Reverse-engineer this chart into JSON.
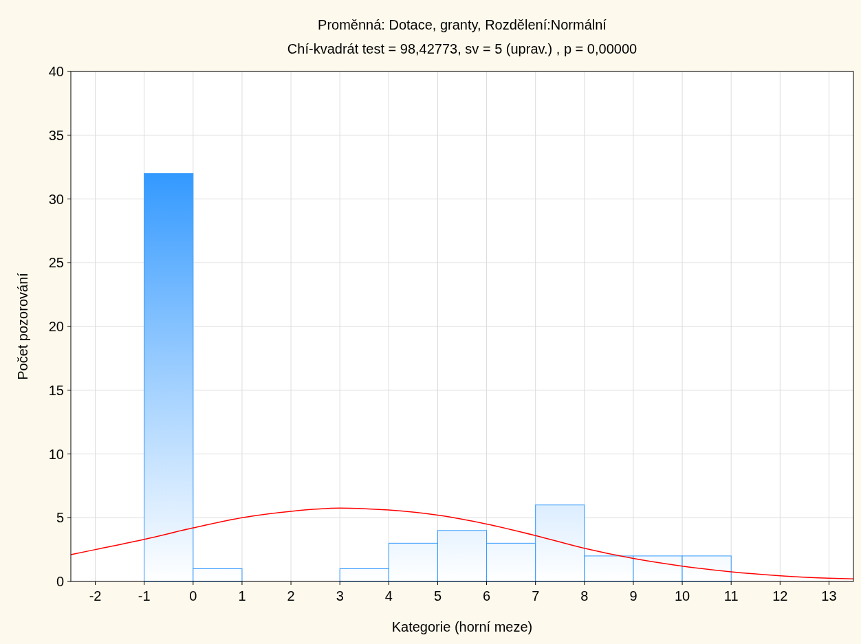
{
  "chart_data": {
    "type": "histogram",
    "title": "Proměnná: Dotace, granty, Rozdělení:Normální",
    "subtitle": "Chí-kvadrát test = 98,42773, sv = 5 (uprav.) , p = 0,00000",
    "xlabel": "Kategorie (horní meze)",
    "ylabel": "Počet pozorování",
    "series": [
      {
        "color": "#3399ff",
        "bins": [
          -1,
          0,
          1,
          2,
          3,
          4,
          5,
          6,
          7,
          8,
          9,
          10,
          11
        ],
        "values": [
          32,
          1,
          0,
          0,
          1,
          3,
          4,
          3,
          6,
          2,
          2,
          2
        ]
      },
      {
        "type": "line",
        "color": "#ff0000",
        "x": [
          -2.5,
          -2,
          -1,
          0,
          1,
          2,
          3,
          4,
          5,
          6,
          7,
          8,
          9,
          10,
          11,
          12,
          13,
          13.5
        ],
        "values": [
          2.1,
          2.5,
          3.3,
          4.2,
          5.0,
          5.5,
          5.75,
          5.6,
          5.2,
          4.5,
          3.6,
          2.6,
          1.8,
          1.2,
          0.75,
          0.45,
          0.25,
          0.2
        ]
      }
    ],
    "xlim": [
      -2.5,
      13.5
    ],
    "xticks": [
      -2,
      -1,
      0,
      1,
      2,
      3,
      4,
      5,
      6,
      7,
      8,
      9,
      10,
      11,
      12,
      13
    ],
    "ylim": [
      0,
      40
    ],
    "yticks": [
      0,
      5,
      10,
      15,
      20,
      25,
      30,
      35,
      40
    ],
    "grid": true
  }
}
